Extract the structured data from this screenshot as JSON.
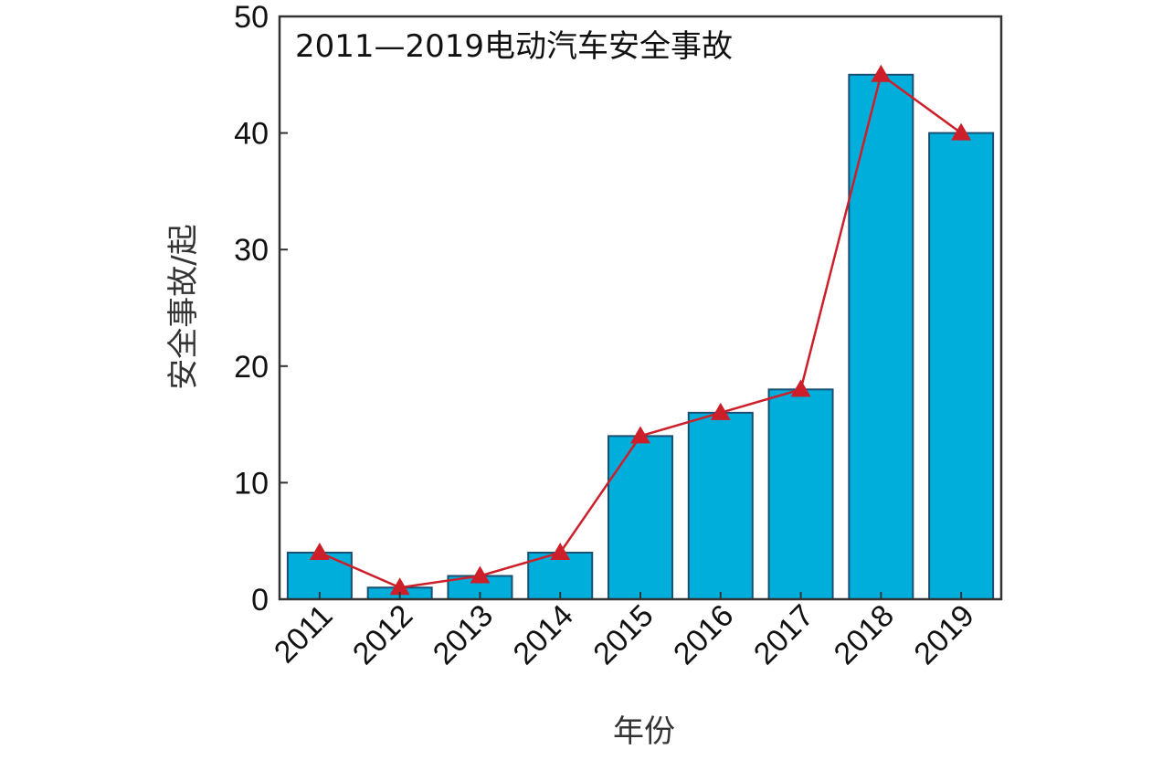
{
  "chart_data": {
    "type": "bar",
    "title": "2011—2019电动汽车安全事故",
    "xlabel": "年份",
    "ylabel": "安全事故/起",
    "categories": [
      "2011",
      "2012",
      "2013",
      "2014",
      "2015",
      "2016",
      "2017",
      "2018",
      "2019"
    ],
    "values": [
      4,
      1,
      2,
      4,
      14,
      16,
      18,
      45,
      40
    ],
    "line_values": [
      4,
      1,
      2,
      4,
      14,
      16,
      18,
      45,
      40
    ],
    "ylim": [
      0,
      50
    ],
    "yticks": [
      "0",
      "10",
      "20",
      "30",
      "40",
      "50"
    ],
    "grid": false,
    "bar_color": "#00aedb",
    "bar_edge_color": "#1a4f73",
    "line_color": "#cc1f2a",
    "marker_color": "#cc1f2a"
  }
}
